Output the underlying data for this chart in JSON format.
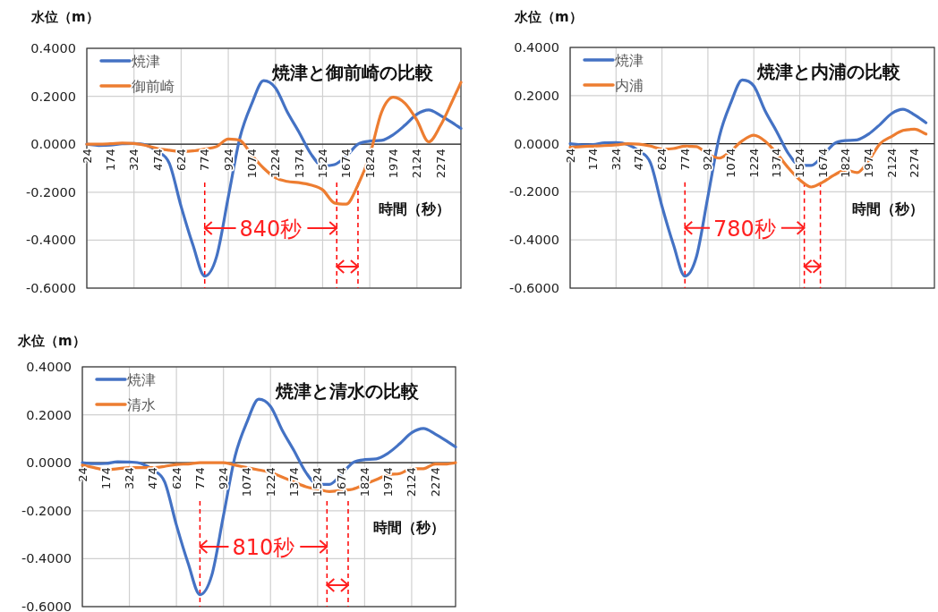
{
  "chart_data": [
    {
      "type": "line",
      "title": "焼津と御前崎の比較",
      "xlabel": "時間（秒）",
      "ylabel": "水位（m）",
      "x": [
        24,
        99,
        174,
        249,
        324,
        399,
        474,
        549,
        624,
        699,
        774,
        849,
        924,
        999,
        1074,
        1149,
        1224,
        1299,
        1374,
        1449,
        1524,
        1599,
        1674,
        1749,
        1824,
        1899,
        1974,
        2049,
        2124,
        2199,
        2274,
        2349,
        2404
      ],
      "series": [
        {
          "name": "焼津",
          "color": "#4472c4",
          "values": [
            0,
            -0.005,
            -0.004,
            0.002,
            0.003,
            -0.003,
            -0.03,
            -0.08,
            -0.26,
            -0.42,
            -0.55,
            -0.47,
            -0.22,
            0.03,
            0.17,
            0.265,
            0.235,
            0.135,
            0.05,
            -0.04,
            -0.09,
            -0.085,
            -0.05,
            0,
            0.013,
            0.016,
            0.04,
            0.08,
            0.125,
            0.143,
            0.12,
            0.09,
            0.066
          ]
        },
        {
          "name": "御前崎",
          "color": "#ed7d31",
          "values": [
            0,
            0,
            0.002,
            0.005,
            0.003,
            -0.005,
            -0.018,
            -0.025,
            -0.03,
            -0.028,
            -0.02,
            -0.01,
            0.022,
            0.016,
            -0.046,
            -0.1,
            -0.14,
            -0.155,
            -0.16,
            -0.17,
            -0.19,
            -0.245,
            -0.25,
            -0.17,
            -0.046,
            0.134,
            0.196,
            0.17,
            0.1,
            0.01,
            0.078,
            0.18,
            0.258
          ]
        }
      ],
      "xlim": [
        24,
        2404
      ],
      "xticks": [
        24,
        174,
        324,
        474,
        624,
        774,
        924,
        1074,
        1224,
        1374,
        1524,
        1674,
        1824,
        1974,
        2124,
        2274
      ],
      "ylim": [
        -0.6,
        0.4
      ],
      "yticks": [
        {
          "value": -0.6,
          "label": "-0.6000"
        },
        {
          "value": -0.4,
          "label": "-0.4000"
        },
        {
          "value": -0.2,
          "label": "-0.2000"
        },
        {
          "value": 0,
          "label": "0.0000"
        },
        {
          "value": 0.2,
          "label": "0.2000"
        },
        {
          "value": 0.4,
          "label": "0.4000"
        }
      ],
      "grid": true,
      "legend": "top left",
      "line_style": "solid",
      "marker": "none",
      "ref_lines": [
        {
          "axis": "x",
          "value": 774,
          "color": "#ff0000",
          "line_style": "dashed"
        },
        {
          "axis": "x",
          "value": 1614,
          "color": "#ff0000",
          "line_style": "dashed"
        },
        {
          "axis": "x",
          "value": 1749,
          "color": "#ff0000",
          "line_style": "dashed"
        }
      ],
      "annotations": [
        "840秒"
      ]
    },
    {
      "type": "line",
      "title": "焼津と内浦の比較",
      "xlabel": "時間（秒）",
      "ylabel": "水位（m）",
      "x": [
        24,
        99,
        174,
        249,
        324,
        399,
        474,
        549,
        624,
        699,
        774,
        849,
        924,
        999,
        1074,
        1149,
        1224,
        1299,
        1374,
        1449,
        1524,
        1599,
        1674,
        1749,
        1824,
        1899,
        1974,
        2049,
        2124,
        2199,
        2274,
        2349
      ],
      "series": [
        {
          "name": "焼津",
          "color": "#4472c4",
          "values": [
            0,
            -0.005,
            -0.004,
            0.004,
            0.005,
            -0.003,
            -0.03,
            -0.08,
            -0.26,
            -0.42,
            -0.55,
            -0.47,
            -0.22,
            0.03,
            0.17,
            0.265,
            0.24,
            0.135,
            0.05,
            -0.04,
            -0.09,
            -0.09,
            -0.05,
            0,
            0.013,
            0.016,
            0.04,
            0.08,
            0.125,
            0.143,
            0.12,
            0.087
          ]
        },
        {
          "name": "内浦",
          "color": "#ed7d31",
          "values": [
            -0.015,
            -0.012,
            -0.01,
            -0.008,
            -0.005,
            0,
            -0.002,
            -0.01,
            -0.022,
            -0.02,
            -0.01,
            -0.012,
            -0.043,
            -0.06,
            -0.03,
            0.012,
            0.035,
            0.01,
            -0.04,
            -0.1,
            -0.15,
            -0.18,
            -0.16,
            -0.13,
            -0.11,
            -0.12,
            -0.07,
            0,
            0.03,
            0.055,
            0.06,
            0.04
          ]
        }
      ],
      "xlim": [
        24,
        2404
      ],
      "xticks": [
        24,
        174,
        324,
        474,
        624,
        774,
        924,
        1074,
        1224,
        1374,
        1524,
        1674,
        1824,
        1974,
        2124,
        2274
      ],
      "ylim": [
        -0.6,
        0.4
      ],
      "yticks": [
        {
          "value": -0.6,
          "label": "-0.6000"
        },
        {
          "value": -0.4,
          "label": "-0.4000"
        },
        {
          "value": -0.2,
          "label": "-0.2000"
        },
        {
          "value": 0,
          "label": "0.0000"
        },
        {
          "value": 0.2,
          "label": "0.2000"
        },
        {
          "value": 0.4,
          "label": "0.4000"
        }
      ],
      "grid": true,
      "legend": "top left",
      "line_style": "solid",
      "marker": "none",
      "ref_lines": [
        {
          "axis": "x",
          "value": 774,
          "color": "#ff0000",
          "line_style": "dashed"
        },
        {
          "axis": "x",
          "value": 1554,
          "color": "#ff0000",
          "line_style": "dashed"
        },
        {
          "axis": "x",
          "value": 1659,
          "color": "#ff0000",
          "line_style": "dashed"
        }
      ],
      "annotations": [
        "780秒"
      ]
    },
    {
      "type": "line",
      "title": "焼津と清水の比較",
      "xlabel": "時間（秒）",
      "ylabel": "水位（m）",
      "x": [
        24,
        99,
        174,
        249,
        324,
        399,
        474,
        549,
        624,
        699,
        774,
        849,
        924,
        999,
        1074,
        1149,
        1224,
        1299,
        1374,
        1449,
        1524,
        1599,
        1674,
        1749,
        1824,
        1899,
        1974,
        2049,
        2124,
        2199,
        2274,
        2349,
        2404
      ],
      "series": [
        {
          "name": "焼津",
          "color": "#4472c4",
          "values": [
            0,
            -0.004,
            -0.003,
            0.004,
            0.003,
            -0.003,
            -0.03,
            -0.08,
            -0.26,
            -0.42,
            -0.55,
            -0.47,
            -0.22,
            0.03,
            0.17,
            0.265,
            0.235,
            0.135,
            0.05,
            -0.04,
            -0.09,
            -0.09,
            -0.05,
            0,
            0.013,
            0.016,
            0.04,
            0.08,
            0.125,
            0.143,
            0.12,
            0.09,
            0.066
          ]
        },
        {
          "name": "清水",
          "color": "#ed7d31",
          "values": [
            -0.01,
            -0.02,
            -0.03,
            -0.025,
            -0.02,
            -0.02,
            -0.02,
            -0.015,
            -0.007,
            -0.005,
            0,
            0,
            0,
            -0.01,
            -0.02,
            -0.03,
            -0.04,
            -0.06,
            -0.08,
            -0.1,
            -0.11,
            -0.12,
            -0.115,
            -0.11,
            -0.09,
            -0.07,
            -0.05,
            -0.045,
            -0.025,
            -0.025,
            -0.005,
            -0.005,
            0
          ]
        }
      ],
      "xlim": [
        24,
        2404
      ],
      "xticks": [
        24,
        174,
        324,
        474,
        624,
        774,
        924,
        1074,
        1224,
        1374,
        1524,
        1674,
        1824,
        1974,
        2124,
        2274
      ],
      "ylim": [
        -0.6,
        0.4
      ],
      "yticks": [
        {
          "value": -0.6,
          "label": "-0.6000"
        },
        {
          "value": -0.4,
          "label": "-0.4000"
        },
        {
          "value": -0.2,
          "label": "-0.2000"
        },
        {
          "value": 0,
          "label": "0.0000"
        },
        {
          "value": 0.2,
          "label": "0.2000"
        },
        {
          "value": 0.4,
          "label": "0.4000"
        }
      ],
      "grid": true,
      "legend": "top left",
      "line_style": "solid",
      "marker": "none",
      "ref_lines": [
        {
          "axis": "x",
          "value": 774,
          "color": "#ff0000",
          "line_style": "dashed"
        },
        {
          "axis": "x",
          "value": 1584,
          "color": "#ff0000",
          "line_style": "dashed"
        },
        {
          "axis": "x",
          "value": 1719,
          "color": "#ff0000",
          "line_style": "dashed"
        }
      ],
      "annotations": [
        "810秒"
      ]
    }
  ]
}
